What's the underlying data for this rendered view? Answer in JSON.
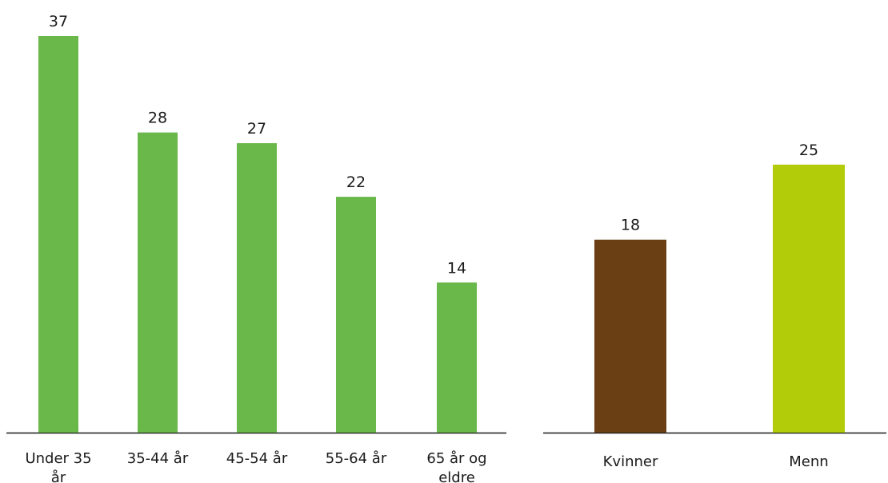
{
  "chart_data": [
    {
      "type": "bar",
      "categories": [
        "Under 35 år",
        "35-44 år",
        "45-54 år",
        "55-64 år",
        "65 år og eldre"
      ],
      "values": [
        37,
        28,
        27,
        22,
        14
      ],
      "colors": [
        "#6ab74a",
        "#6ab74a",
        "#6ab74a",
        "#6ab74a",
        "#6ab74a"
      ],
      "title": "",
      "xlabel": "",
      "ylabel": "",
      "ylim": [
        0,
        37
      ],
      "grid": false
    },
    {
      "type": "bar",
      "categories": [
        "Kvinner",
        "Menn"
      ],
      "values": [
        18,
        25
      ],
      "colors": [
        "#6b3f14",
        "#b3cc09"
      ],
      "title": "",
      "xlabel": "",
      "ylabel": "",
      "ylim": [
        0,
        37
      ],
      "grid": false
    }
  ]
}
